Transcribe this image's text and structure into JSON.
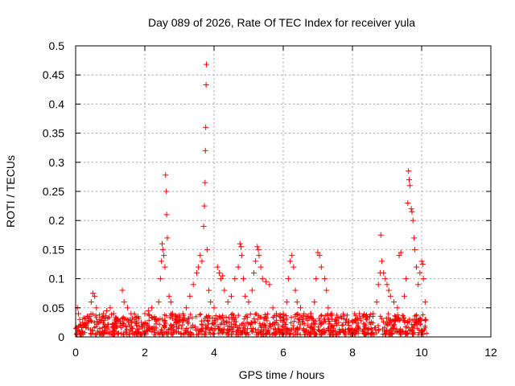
{
  "chart_data": {
    "type": "scatter",
    "title": "Day 089 of 2026, Rate Of TEC Index for receiver yula",
    "xlabel": "GPS time / hours",
    "ylabel": "ROTI / TECUs",
    "xlim": [
      0,
      12
    ],
    "ylim": [
      0,
      0.5
    ],
    "xticks": [
      0,
      2,
      4,
      6,
      8,
      10,
      12
    ],
    "xtick_labels": [
      "0",
      "2",
      "4",
      "6",
      "8",
      "10",
      "12"
    ],
    "yticks": [
      0,
      0.05,
      0.1,
      0.15,
      0.2,
      0.25,
      0.3,
      0.35,
      0.4,
      0.45,
      0.5
    ],
    "ytick_labels": [
      "0",
      "0.05",
      "0.1",
      "0.15",
      "0.2",
      "0.25",
      "0.3",
      "0.35",
      "0.4",
      "0.45",
      "0.5"
    ],
    "grid": true,
    "marker": "+",
    "color": "#ff0000",
    "series": [
      {
        "name": "ROTI",
        "points": [
          [
            0.05,
            0.05
          ],
          [
            0.08,
            0.04
          ],
          [
            0.12,
            0.03
          ],
          [
            0.2,
            0.025
          ],
          [
            0.3,
            0.02
          ],
          [
            0.4,
            0.035
          ],
          [
            0.45,
            0.06
          ],
          [
            0.5,
            0.075
          ],
          [
            0.55,
            0.07
          ],
          [
            0.6,
            0.05
          ],
          [
            0.7,
            0.03
          ],
          [
            0.8,
            0.04
          ],
          [
            0.9,
            0.045
          ],
          [
            1.0,
            0.05
          ],
          [
            1.1,
            0.04
          ],
          [
            1.2,
            0.03
          ],
          [
            1.35,
            0.08
          ],
          [
            1.4,
            0.06
          ],
          [
            1.5,
            0.05
          ],
          [
            1.6,
            0.04
          ],
          [
            1.7,
            0.03
          ],
          [
            1.8,
            0.035
          ],
          [
            1.9,
            0.025
          ],
          [
            2.0,
            0.04
          ],
          [
            2.1,
            0.045
          ],
          [
            2.2,
            0.05
          ],
          [
            2.3,
            0.03
          ],
          [
            2.4,
            0.06
          ],
          [
            2.45,
            0.1
          ],
          [
            2.48,
            0.13
          ],
          [
            2.5,
            0.16
          ],
          [
            2.52,
            0.15
          ],
          [
            2.55,
            0.14
          ],
          [
            2.58,
            0.12
          ],
          [
            2.6,
            0.278
          ],
          [
            2.62,
            0.25
          ],
          [
            2.63,
            0.21
          ],
          [
            2.65,
            0.17
          ],
          [
            2.7,
            0.07
          ],
          [
            2.75,
            0.06
          ],
          [
            2.8,
            0.04
          ],
          [
            2.9,
            0.035
          ],
          [
            3.0,
            0.03
          ],
          [
            3.1,
            0.04
          ],
          [
            3.2,
            0.05
          ],
          [
            3.3,
            0.07
          ],
          [
            3.4,
            0.09
          ],
          [
            3.5,
            0.11
          ],
          [
            3.55,
            0.12
          ],
          [
            3.6,
            0.14
          ],
          [
            3.65,
            0.13
          ],
          [
            3.7,
            0.19
          ],
          [
            3.72,
            0.225
          ],
          [
            3.74,
            0.265
          ],
          [
            3.75,
            0.32
          ],
          [
            3.76,
            0.36
          ],
          [
            3.77,
            0.433
          ],
          [
            3.78,
            0.468
          ],
          [
            3.8,
            0.15
          ],
          [
            3.85,
            0.08
          ],
          [
            3.9,
            0.06
          ],
          [
            4.0,
            0.05
          ],
          [
            4.1,
            0.12
          ],
          [
            4.15,
            0.11
          ],
          [
            4.2,
            0.1
          ],
          [
            4.25,
            0.105
          ],
          [
            4.3,
            0.08
          ],
          [
            4.4,
            0.06
          ],
          [
            4.5,
            0.07
          ],
          [
            4.6,
            0.1
          ],
          [
            4.7,
            0.12
          ],
          [
            4.75,
            0.16
          ],
          [
            4.78,
            0.155
          ],
          [
            4.8,
            0.14
          ],
          [
            4.85,
            0.1
          ],
          [
            4.9,
            0.07
          ],
          [
            5.0,
            0.06
          ],
          [
            5.1,
            0.08
          ],
          [
            5.15,
            0.11
          ],
          [
            5.2,
            0.13
          ],
          [
            5.25,
            0.155
          ],
          [
            5.28,
            0.15
          ],
          [
            5.3,
            0.14
          ],
          [
            5.35,
            0.12
          ],
          [
            5.4,
            0.1
          ],
          [
            5.5,
            0.095
          ],
          [
            5.6,
            0.09
          ],
          [
            5.7,
            0.05
          ],
          [
            5.8,
            0.04
          ],
          [
            5.9,
            0.035
          ],
          [
            6.0,
            0.04
          ],
          [
            6.1,
            0.06
          ],
          [
            6.15,
            0.1
          ],
          [
            6.2,
            0.13
          ],
          [
            6.25,
            0.14
          ],
          [
            6.3,
            0.12
          ],
          [
            6.35,
            0.08
          ],
          [
            6.4,
            0.06
          ],
          [
            6.5,
            0.05
          ],
          [
            6.6,
            0.04
          ],
          [
            6.7,
            0.035
          ],
          [
            6.8,
            0.04
          ],
          [
            6.9,
            0.06
          ],
          [
            6.95,
            0.1
          ],
          [
            7.0,
            0.145
          ],
          [
            7.05,
            0.14
          ],
          [
            7.1,
            0.12
          ],
          [
            7.2,
            0.1
          ],
          [
            7.25,
            0.08
          ],
          [
            7.3,
            0.05
          ],
          [
            7.4,
            0.04
          ],
          [
            7.5,
            0.03
          ],
          [
            7.6,
            0.025
          ],
          [
            7.7,
            0.02
          ],
          [
            7.8,
            0.025
          ],
          [
            7.9,
            0.02
          ],
          [
            8.0,
            0.025
          ],
          [
            8.1,
            0.03
          ],
          [
            8.2,
            0.04
          ],
          [
            8.3,
            0.035
          ],
          [
            8.4,
            0.03
          ],
          [
            8.5,
            0.035
          ],
          [
            8.6,
            0.04
          ],
          [
            8.7,
            0.06
          ],
          [
            8.75,
            0.09
          ],
          [
            8.8,
            0.11
          ],
          [
            8.82,
            0.175
          ],
          [
            8.85,
            0.13
          ],
          [
            8.9,
            0.11
          ],
          [
            8.95,
            0.1
          ],
          [
            9.0,
            0.09
          ],
          [
            9.05,
            0.08
          ],
          [
            9.1,
            0.07
          ],
          [
            9.2,
            0.06
          ],
          [
            9.3,
            0.05
          ],
          [
            9.35,
            0.14
          ],
          [
            9.4,
            0.145
          ],
          [
            9.5,
            0.07
          ],
          [
            9.55,
            0.1
          ],
          [
            9.6,
            0.23
          ],
          [
            9.62,
            0.285
          ],
          [
            9.64,
            0.27
          ],
          [
            9.66,
            0.26
          ],
          [
            9.7,
            0.22
          ],
          [
            9.72,
            0.215
          ],
          [
            9.75,
            0.2
          ],
          [
            9.78,
            0.17
          ],
          [
            9.8,
            0.15
          ],
          [
            9.85,
            0.12
          ],
          [
            9.9,
            0.09
          ],
          [
            9.95,
            0.11
          ],
          [
            10.0,
            0.13
          ],
          [
            10.03,
            0.125
          ],
          [
            10.05,
            0.1
          ],
          [
            10.1,
            0.06
          ],
          [
            10.12,
            0.03
          ]
        ]
      }
    ],
    "baseline_band": {
      "x_range": [
        0,
        10.15
      ],
      "y_range": [
        0.004,
        0.04
      ]
    }
  }
}
